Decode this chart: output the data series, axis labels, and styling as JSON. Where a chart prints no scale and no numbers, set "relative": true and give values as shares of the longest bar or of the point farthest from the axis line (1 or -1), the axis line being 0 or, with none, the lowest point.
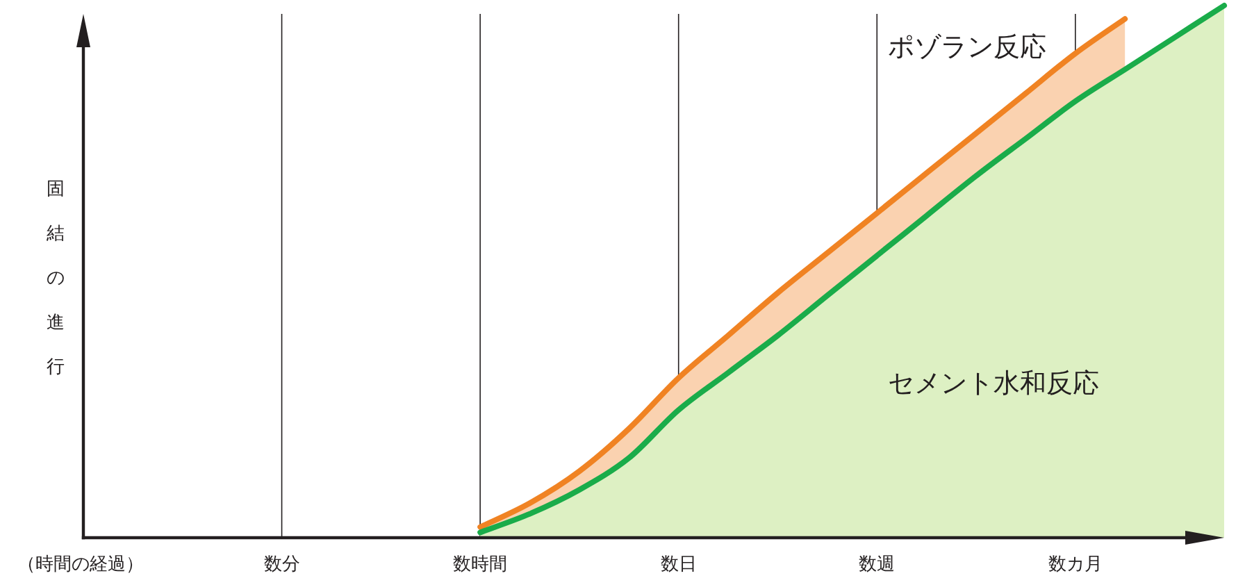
{
  "chart_data": {
    "type": "area",
    "relative": true,
    "xlabel": "（時間の経過）",
    "ylabel": "固結の進行",
    "categories": [
      null,
      null,
      null,
      null,
      "数分",
      null,
      null,
      null,
      "数時間",
      null,
      null,
      null,
      "数日",
      null,
      null,
      null,
      "数週",
      null,
      null,
      null,
      "数カ月",
      null,
      null,
      null
    ],
    "grid": "x",
    "line_style": "solid",
    "series": [
      {
        "name": "ポゾラン反応",
        "color": "#f08323",
        "values": [
          null,
          null,
          null,
          null,
          null,
          null,
          null,
          null,
          0.02,
          0.065,
          0.125,
          0.205,
          0.3,
          0.38,
          0.46,
          0.535,
          0.61,
          0.685,
          0.76,
          0.835,
          0.91,
          0.975,
          null,
          null
        ]
      },
      {
        "name": "セメント水和反応",
        "color": "#1aac4a",
        "values": [
          null,
          null,
          null,
          null,
          null,
          null,
          null,
          null,
          0.01,
          0.045,
          0.09,
          0.15,
          0.24,
          0.31,
          0.38,
          0.455,
          0.53,
          0.605,
          0.68,
          0.75,
          0.82,
          0.88,
          0.94,
          1.0
        ]
      }
    ]
  }
}
